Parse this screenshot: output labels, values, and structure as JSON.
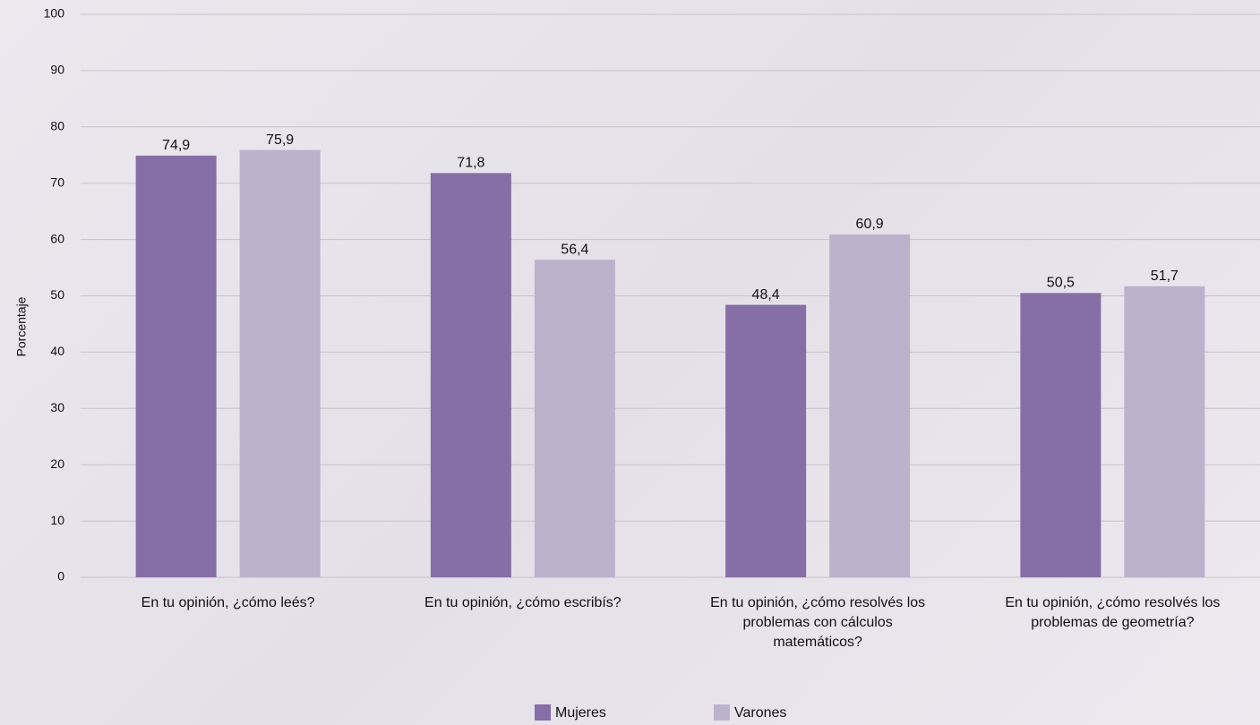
{
  "chart_data": {
    "type": "bar",
    "y_label": "Porcentaje",
    "categories": [
      "En tu opinión, ¿cómo leés?",
      "En tu opinión, ¿cómo escribís?",
      "En tu opinión, ¿cómo resolvés los problemas con cálculos matemáticos?",
      "En tu opinión, ¿cómo resolvés los problemas de geometría?"
    ],
    "series": [
      {
        "name": "Mujeres",
        "color": "#866ea6",
        "values": [
          74.9,
          71.8,
          48.4,
          50.5
        ],
        "value_labels": [
          "74,9",
          "71,8",
          "48,4",
          "50,5"
        ]
      },
      {
        "name": "Varones",
        "color": "#bcb2cc",
        "values": [
          75.9,
          56.4,
          60.9,
          51.7
        ],
        "value_labels": [
          "75,9",
          "56,4",
          "60,9",
          "51,7"
        ]
      }
    ],
    "ylim": [
      0,
      100
    ],
    "yticks": [
      0,
      10,
      20,
      30,
      40,
      50,
      60,
      70,
      80,
      90,
      100
    ],
    "grid": true,
    "legend": "bottom"
  }
}
